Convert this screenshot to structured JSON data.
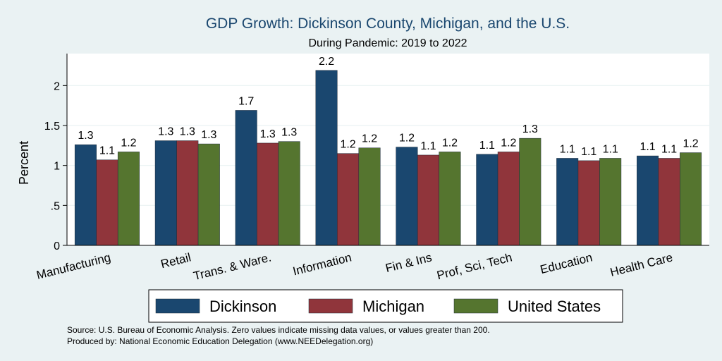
{
  "chart_data": {
    "type": "bar",
    "title": "GDP Growth: Dickinson County, Michigan, and the U.S.",
    "subtitle": "During Pandemic: 2019 to 2022",
    "ylabel": "Percent",
    "xlabel": "",
    "ylim": [
      0,
      2.4
    ],
    "yticks": [
      {
        "value": 0,
        "label": "0"
      },
      {
        "value": 0.5,
        "label": ".5"
      },
      {
        "value": 1,
        "label": "1"
      },
      {
        "value": 1.5,
        "label": "1.5"
      },
      {
        "value": 2,
        "label": "2"
      }
    ],
    "grid": true,
    "legend_position": "bottom",
    "categories": [
      "Manufacturing",
      "Retail",
      "Trans. & Ware.",
      "Information",
      "Fin & Ins",
      "Prof, Sci, Tech",
      "Education",
      "Health Care"
    ],
    "series": [
      {
        "name": "Dickinson",
        "color": "#1a476f",
        "values": [
          1.26,
          1.31,
          1.69,
          2.19,
          1.23,
          1.14,
          1.09,
          1.12
        ],
        "labels": [
          "1.3",
          "1.3",
          "1.7",
          "2.2",
          "1.2",
          "1.1",
          "1.1",
          "1.1"
        ]
      },
      {
        "name": "Michigan",
        "color": "#90353b",
        "values": [
          1.07,
          1.31,
          1.28,
          1.15,
          1.13,
          1.17,
          1.06,
          1.09
        ],
        "labels": [
          "1.1",
          "1.3",
          "1.3",
          "1.2",
          "1.1",
          "1.2",
          "1.1",
          "1.1"
        ]
      },
      {
        "name": "United States",
        "color": "#55752f",
        "values": [
          1.17,
          1.27,
          1.3,
          1.22,
          1.17,
          1.34,
          1.09,
          1.16
        ],
        "labels": [
          "1.2",
          "1.3",
          "1.3",
          "1.2",
          "1.2",
          "1.3",
          "1.1",
          "1.2"
        ]
      }
    ]
  },
  "notes": {
    "source": "Source: U.S. Bureau of Economic Analysis. Zero values indicate missing data values, or values greater than 200.",
    "produced_by": "Produced by: National Economic Education Delegation (www.NEEDelegation.org)"
  },
  "colors": {
    "background": "#eaf2f3",
    "plot_background": "#ffffff",
    "title": "#1a476f"
  }
}
